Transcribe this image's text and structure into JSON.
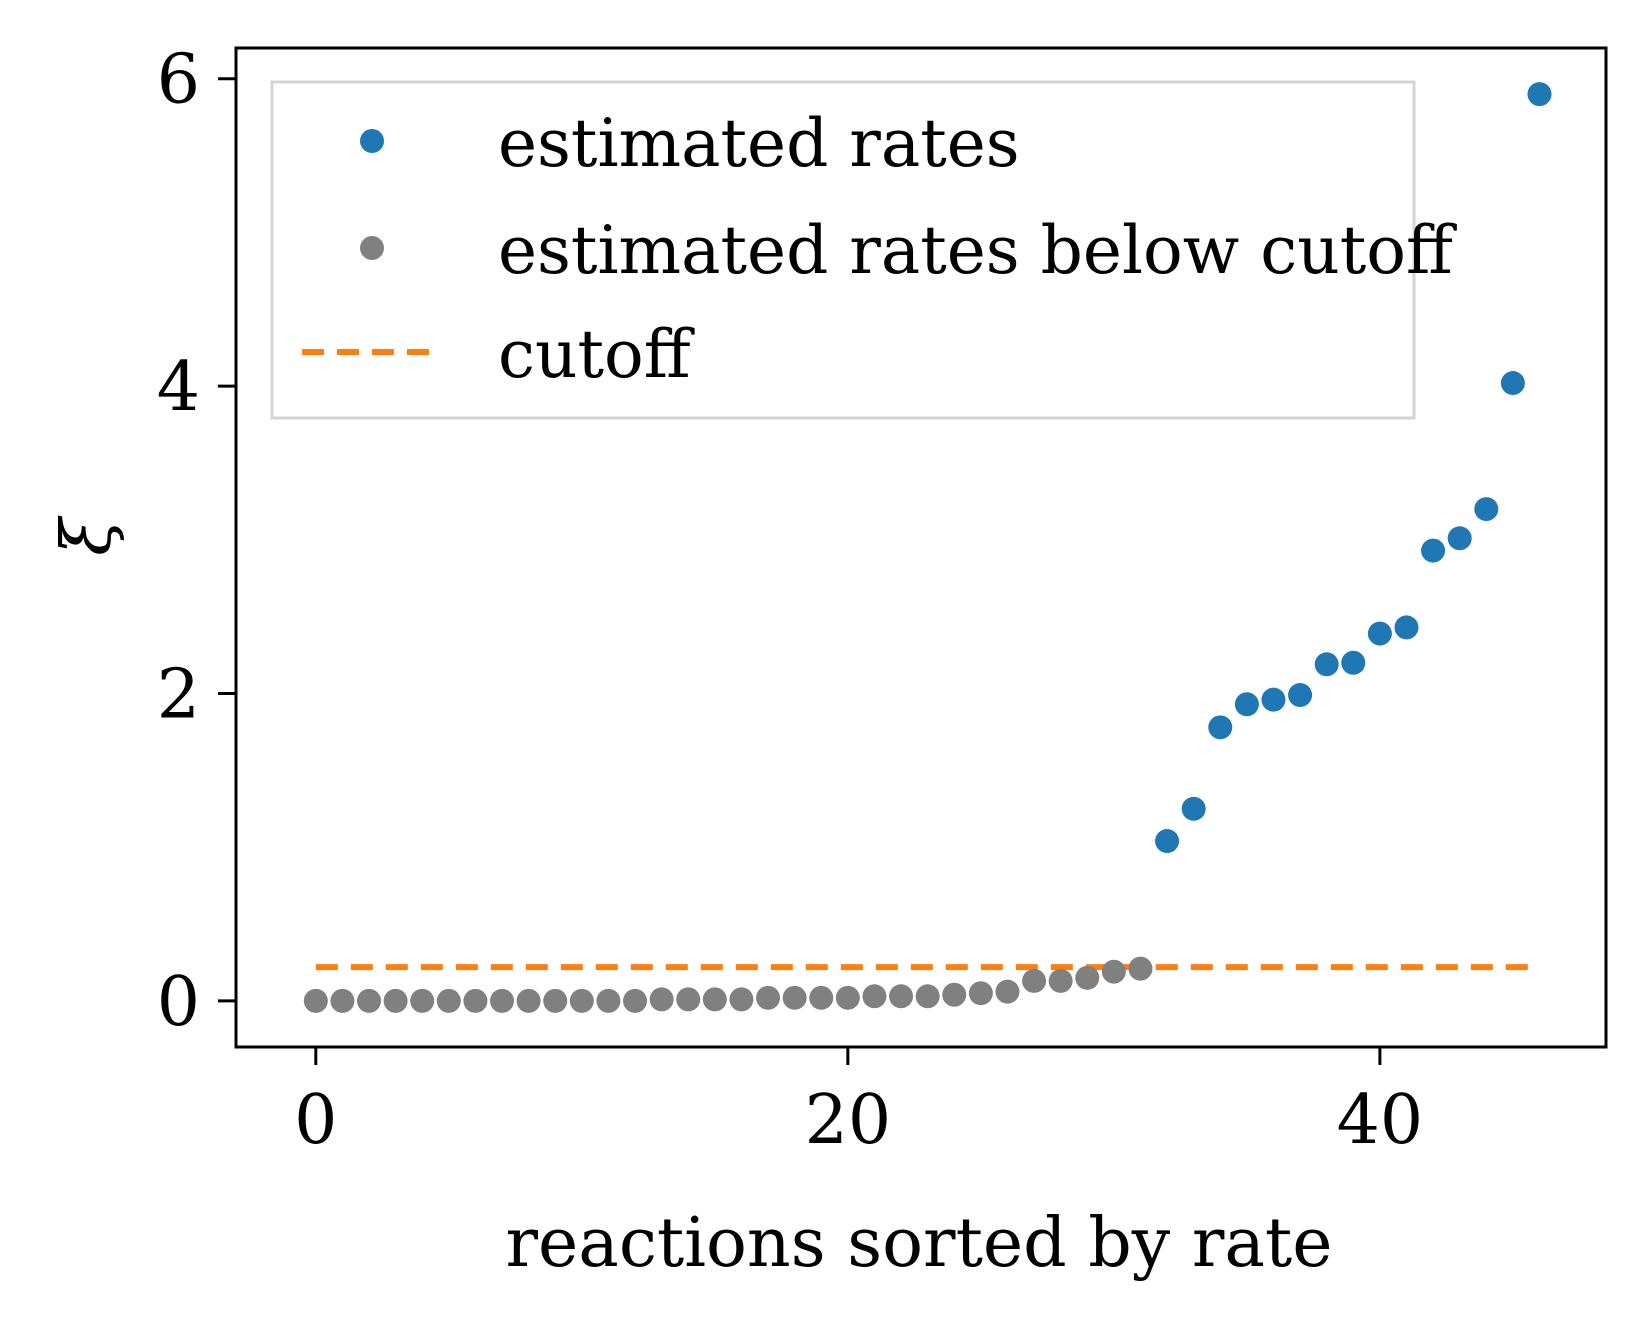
{
  "chart_data": {
    "type": "scatter",
    "xlabel": "reactions sorted by rate",
    "ylabel": "ξ",
    "xlim": [
      -3,
      48.5
    ],
    "ylim": [
      -0.3,
      6.2
    ],
    "xticks": [
      0,
      20,
      40
    ],
    "yticks": [
      0,
      2,
      4,
      6
    ],
    "grid": false,
    "legend_position": "top-left",
    "series": [
      {
        "name": "estimated rates",
        "color": "#1f77b4",
        "marker": "circle",
        "x": [
          32,
          33,
          34,
          35,
          36,
          37,
          38,
          39,
          40,
          41,
          42,
          43,
          44,
          45,
          46
        ],
        "y": [
          1.04,
          1.25,
          1.78,
          1.93,
          1.96,
          1.99,
          2.19,
          2.2,
          2.39,
          2.43,
          2.93,
          3.01,
          3.2,
          4.02,
          5.9
        ]
      },
      {
        "name": "estimated rates below cutoff",
        "color": "#808080",
        "marker": "circle",
        "x": [
          0,
          1,
          2,
          3,
          4,
          5,
          6,
          7,
          8,
          9,
          10,
          11,
          12,
          13,
          14,
          15,
          16,
          17,
          18,
          19,
          20,
          21,
          22,
          23,
          24,
          25,
          26,
          27,
          28,
          29,
          30,
          31
        ],
        "y": [
          0.0,
          0.0,
          0.0,
          0.0,
          0.0,
          0.0,
          0.0,
          0.0,
          0.0,
          0.0,
          0.0,
          0.0,
          0.0,
          0.01,
          0.01,
          0.01,
          0.01,
          0.02,
          0.02,
          0.02,
          0.02,
          0.03,
          0.03,
          0.03,
          0.04,
          0.05,
          0.06,
          0.13,
          0.13,
          0.15,
          0.19,
          0.21
        ]
      },
      {
        "name": "cutoff",
        "color": "#ff7f0e",
        "style": "dashed-line",
        "x": [
          0,
          46
        ],
        "y": [
          0.22,
          0.22
        ]
      }
    ]
  }
}
